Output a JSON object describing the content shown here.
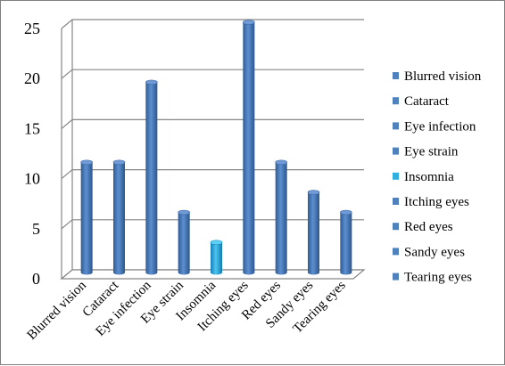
{
  "chart_data": {
    "type": "bar",
    "title": "",
    "xlabel": "",
    "ylabel": "",
    "categories": [
      "Blurred vision",
      "Cataract",
      "Eye infection",
      "Eye strain",
      "Insomnia",
      "Itching eyes",
      "Red eyes",
      "Sandy eyes",
      "Tearing eyes"
    ],
    "series": [
      {
        "name": "Blurred vision",
        "values": [
          11,
          null,
          null,
          null,
          null,
          null,
          null,
          null,
          null
        ]
      },
      {
        "name": "Cataract",
        "values": [
          null,
          11,
          null,
          null,
          null,
          null,
          null,
          null,
          null
        ]
      },
      {
        "name": "Eye infection",
        "values": [
          null,
          null,
          19,
          null,
          null,
          null,
          null,
          null,
          null
        ]
      },
      {
        "name": "Eye strain",
        "values": [
          null,
          null,
          null,
          6,
          null,
          null,
          null,
          null,
          null
        ]
      },
      {
        "name": "Insomnia",
        "values": [
          null,
          null,
          null,
          null,
          3,
          null,
          null,
          null,
          null
        ]
      },
      {
        "name": "Itching eyes",
        "values": [
          null,
          null,
          null,
          null,
          null,
          25,
          null,
          null,
          null
        ]
      },
      {
        "name": "Red eyes",
        "values": [
          null,
          null,
          null,
          null,
          null,
          null,
          11,
          null,
          null
        ]
      },
      {
        "name": "Sandy eyes",
        "values": [
          null,
          null,
          null,
          null,
          null,
          null,
          null,
          8,
          null
        ]
      },
      {
        "name": "Tearing eyes",
        "values": [
          null,
          null,
          null,
          null,
          null,
          null,
          null,
          null,
          6
        ]
      }
    ],
    "values": [
      11,
      11,
      19,
      6,
      3,
      25,
      11,
      8,
      6
    ],
    "colors": [
      "#4f81bd",
      "#4f81bd",
      "#4f81bd",
      "#4f81bd",
      "#31b0e0",
      "#4f81bd",
      "#4f81bd",
      "#4f81bd",
      "#4f81bd"
    ],
    "ylim": [
      0,
      25
    ],
    "yticks": [
      "0",
      "5",
      "10",
      "15",
      "20",
      "25"
    ],
    "grid": true,
    "legend": "right",
    "style": "3d-cylinder"
  }
}
